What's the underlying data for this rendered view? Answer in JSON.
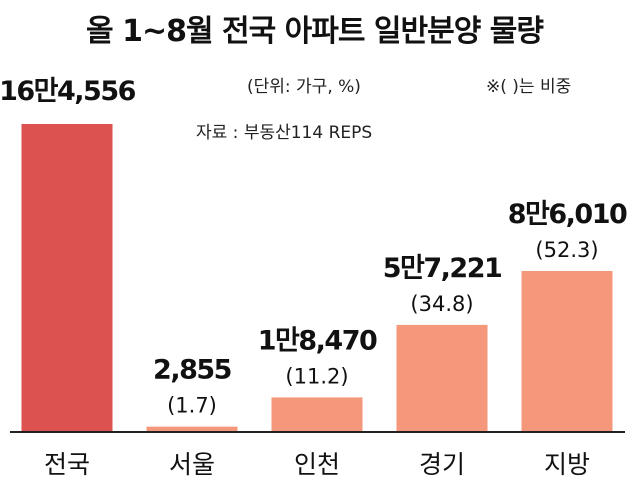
{
  "title": "올 1~8월 전국 아파트 일반분양 물량",
  "unit_note": "(단위: 가구, %)",
  "share_note": "※(   )는 비중",
  "source_note": "자료 : 부동산114 REPS",
  "colors": {
    "national_bar": "#db5250",
    "region_bar": "#f4977a",
    "axis": "#222222"
  },
  "chart_data": {
    "type": "bar",
    "title": "올 1~8월 전국 아파트 일반분양 물량",
    "xlabel": "",
    "ylabel": "",
    "unit": "가구",
    "categories": [
      "전국",
      "서울",
      "인천",
      "경기",
      "지방"
    ],
    "values": [
      164556,
      2855,
      18470,
      57221,
      86010
    ],
    "value_labels": [
      "16만4,556",
      "2,855",
      "1만8,470",
      "5만7,221",
      "8만6,010"
    ],
    "share_percent": [
      null,
      1.7,
      11.2,
      34.8,
      52.3
    ],
    "share_labels": [
      "",
      "(1.7)",
      "(11.2)",
      "(34.8)",
      "(52.3)"
    ],
    "ylim": [
      0,
      164556
    ],
    "grid": false,
    "legend": "none"
  }
}
